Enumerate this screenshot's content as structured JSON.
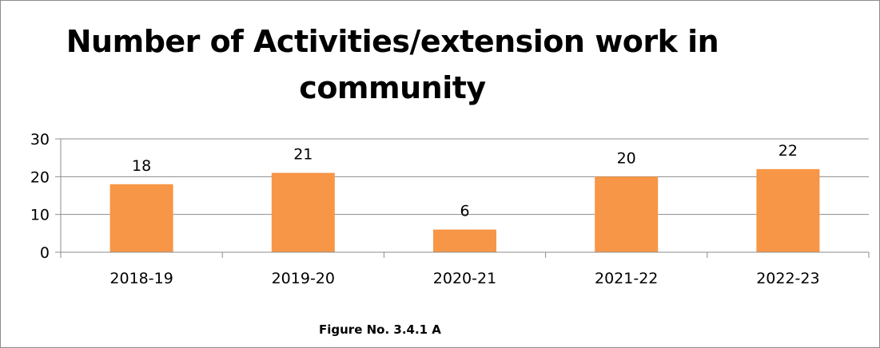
{
  "chart_data": {
    "type": "bar",
    "title": "Number of Activities/extension work in community",
    "categories": [
      "2018-19",
      "2019-20",
      "2020-21",
      "2021-22",
      "2022-23"
    ],
    "values": [
      18,
      21,
      6,
      20,
      22
    ],
    "value_labels": [
      "18",
      "21",
      "6",
      "20",
      "22"
    ],
    "yticks": [
      0,
      10,
      20,
      30
    ],
    "ytick_labels": [
      "0",
      "10",
      "20",
      "30"
    ],
    "ylim": [
      0,
      30
    ],
    "xlabel": "",
    "ylabel": "",
    "grid": true,
    "legend": "none",
    "bar_color": "#f79646",
    "gridline_color": "#8c8c8c"
  },
  "caption": "Figure No. 3.4.1 A"
}
